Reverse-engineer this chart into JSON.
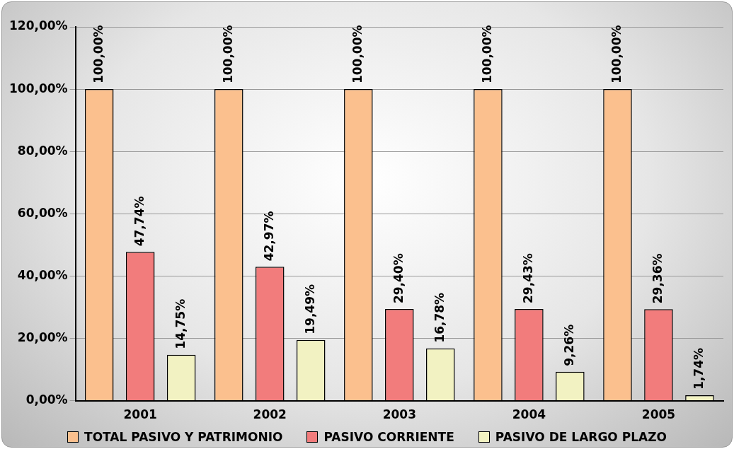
{
  "chart_data": {
    "type": "bar",
    "categories": [
      "2001",
      "2002",
      "2003",
      "2004",
      "2005"
    ],
    "series": [
      {
        "name": "TOTAL PASIVO Y PATRIMONIO",
        "color": "#fbc08e",
        "values": [
          100,
          100,
          100,
          100,
          100
        ],
        "value_labels": [
          "100,00%",
          "100,00%",
          "100,00%",
          "100,00%",
          "100,00%"
        ]
      },
      {
        "name": "PASIVO CORRIENTE",
        "color": "#f27c7c",
        "values": [
          47.74,
          42.97,
          29.4,
          29.43,
          29.36
        ],
        "value_labels": [
          "47,74%",
          "42,97%",
          "29,40%",
          "29,43%",
          "29,36%"
        ]
      },
      {
        "name": "PASIVO DE LARGO PLAZO",
        "color": "#f2f2c2",
        "values": [
          14.75,
          19.49,
          16.78,
          9.26,
          1.74
        ],
        "value_labels": [
          "14,75%",
          "19,49%",
          "16,78%",
          "9,26%",
          "1,74%"
        ]
      }
    ],
    "ylim": [
      0,
      120
    ],
    "yticks": [
      {
        "value": 0,
        "label": "0,00%"
      },
      {
        "value": 20,
        "label": "20,00%"
      },
      {
        "value": 40,
        "label": "40,00%"
      },
      {
        "value": 60,
        "label": "60,00%"
      },
      {
        "value": 80,
        "label": "80,00%"
      },
      {
        "value": 100,
        "label": "100,00%"
      },
      {
        "value": 120,
        "label": "120,00%"
      }
    ],
    "grid": "y",
    "legend": "bottom"
  }
}
